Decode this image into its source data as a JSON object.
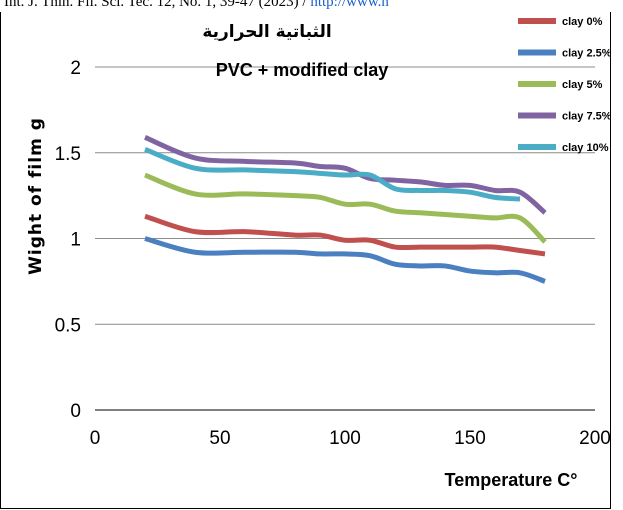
{
  "header": {
    "text": "Int. J. Thin. Fil. Sci. Tec. 12, No. 1, 39-47 (2023) / ",
    "link": "http://www.n"
  },
  "chart_data": {
    "type": "line",
    "title": "الثباتية الحرارية",
    "subtitle": "PVC + modified clay",
    "xlabel": "Temperature C°",
    "ylabel": "Wight of film g",
    "xlim": [
      0,
      200
    ],
    "ylim": [
      0,
      2
    ],
    "xticks": [
      "0",
      "50",
      "100",
      "150",
      "200"
    ],
    "yticks": [
      "0",
      "0.5",
      "1",
      "1.5",
      "2"
    ],
    "grid": "horizontal",
    "legend_position": "top-right",
    "series": [
      {
        "name": "clay 0%",
        "color": "#c0504d",
        "x": [
          20,
          40,
          60,
          80,
          90,
          100,
          110,
          120,
          130,
          140,
          150,
          160,
          170,
          180
        ],
        "y": [
          1.13,
          1.04,
          1.04,
          1.02,
          1.02,
          0.99,
          0.99,
          0.95,
          0.95,
          0.95,
          0.95,
          0.95,
          0.93,
          0.91
        ]
      },
      {
        "name": "clay 2.5%",
        "color": "#4a7fc0",
        "x": [
          20,
          40,
          60,
          80,
          90,
          100,
          110,
          120,
          130,
          140,
          150,
          160,
          170,
          180
        ],
        "y": [
          1.0,
          0.92,
          0.92,
          0.92,
          0.91,
          0.91,
          0.9,
          0.85,
          0.84,
          0.84,
          0.81,
          0.8,
          0.8,
          0.75
        ]
      },
      {
        "name": "clay 5%",
        "color": "#9bbb59",
        "x": [
          20,
          40,
          60,
          80,
          90,
          100,
          110,
          120,
          130,
          140,
          150,
          160,
          170,
          180
        ],
        "y": [
          1.37,
          1.26,
          1.26,
          1.25,
          1.24,
          1.2,
          1.2,
          1.16,
          1.15,
          1.14,
          1.13,
          1.12,
          1.12,
          0.98
        ]
      },
      {
        "name": "clay 7.5%",
        "color": "#8064a2",
        "x": [
          20,
          40,
          60,
          80,
          90,
          100,
          110,
          120,
          130,
          140,
          150,
          160,
          170,
          180
        ],
        "y": [
          1.59,
          1.47,
          1.45,
          1.44,
          1.42,
          1.41,
          1.35,
          1.34,
          1.33,
          1.31,
          1.31,
          1.28,
          1.27,
          1.15
        ]
      },
      {
        "name": "clay 10%",
        "color": "#4bacc6",
        "x": [
          20,
          40,
          60,
          80,
          90,
          100,
          110,
          120,
          130,
          140,
          150,
          160,
          170
        ],
        "y": [
          1.52,
          1.41,
          1.4,
          1.39,
          1.38,
          1.37,
          1.37,
          1.29,
          1.28,
          1.28,
          1.27,
          1.24,
          1.23
        ]
      }
    ]
  }
}
